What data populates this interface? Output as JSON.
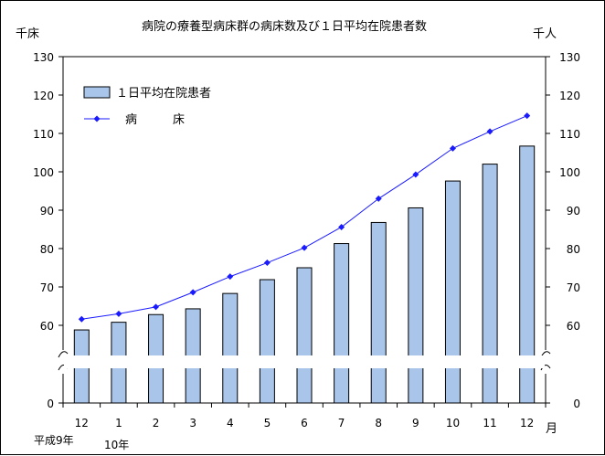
{
  "chart_data": {
    "type": "bar+line",
    "title": "病院の療養型病床群の病床数及び１日平均在院患者数",
    "left_unit": "千床",
    "right_unit": "千人",
    "x_unit": "月",
    "categories": [
      "12",
      "1",
      "2",
      "3",
      "4",
      "5",
      "6",
      "7",
      "8",
      "9",
      "10",
      "11",
      "12"
    ],
    "year_labels": [
      "平成9年",
      "10年"
    ],
    "y_ticks": [
      0,
      60,
      70,
      80,
      90,
      100,
      110,
      120,
      130
    ],
    "ylim": [
      0,
      130
    ],
    "axis_break": true,
    "series": [
      {
        "name": "１日平均在院患者",
        "kind": "bar",
        "color": "#a9c5ea",
        "values": [
          58.8,
          60.8,
          62.8,
          64.3,
          68.3,
          71.9,
          75.0,
          81.3,
          86.8,
          90.6,
          97.6,
          102.0,
          106.7
        ]
      },
      {
        "name": "病　　　床",
        "kind": "line",
        "color": "#1a1aff",
        "values": [
          61.6,
          63.0,
          64.8,
          68.6,
          72.7,
          76.3,
          80.2,
          85.6,
          93.0,
          99.3,
          106.1,
          110.5,
          114.6
        ]
      }
    ],
    "legend_position": "top-left",
    "grid": false
  }
}
